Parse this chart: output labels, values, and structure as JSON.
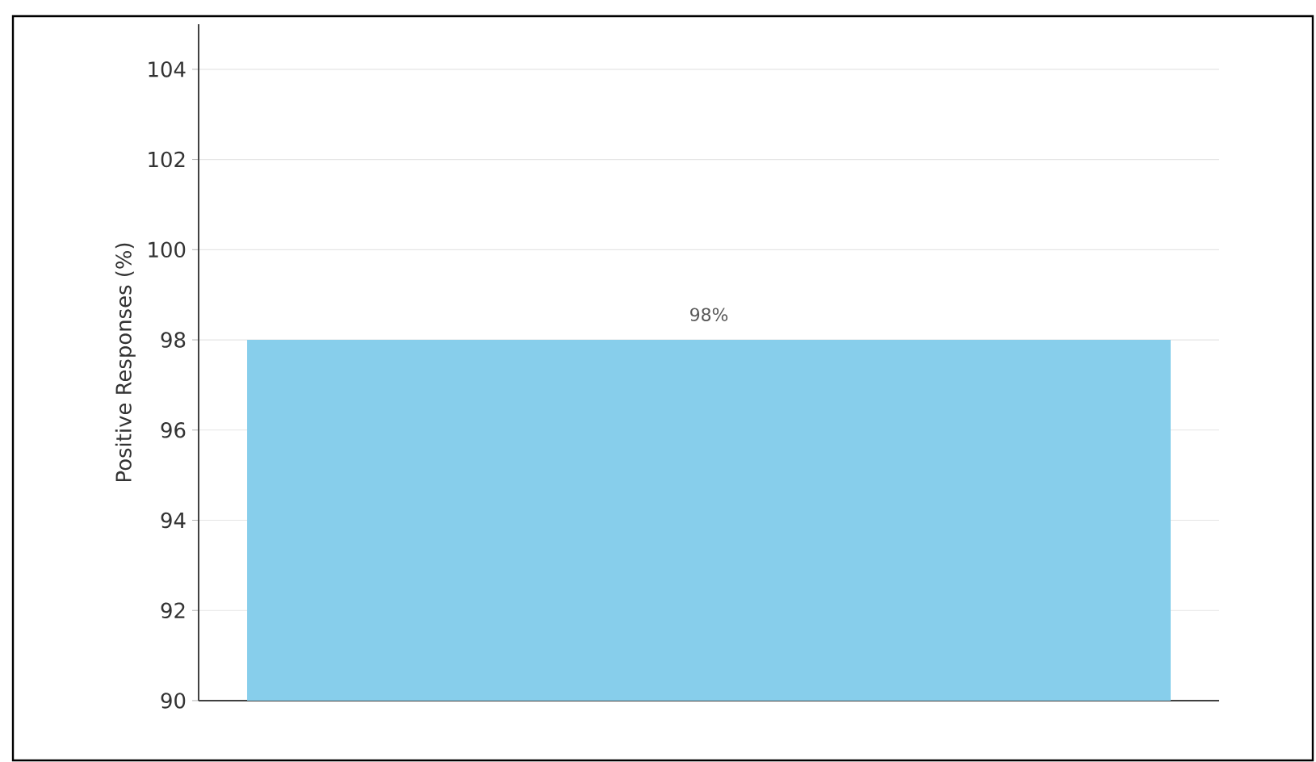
{
  "chart_data": {
    "type": "bar",
    "ylabel": "Positive Responses (%)",
    "categories": [
      null
    ],
    "values": [
      98
    ],
    "value_labels": [
      "98%"
    ],
    "color": "#87ceeb",
    "ylim": [
      90,
      105
    ],
    "yticks": [
      90,
      92,
      94,
      96,
      98,
      100,
      102,
      104
    ],
    "grid": "y"
  }
}
